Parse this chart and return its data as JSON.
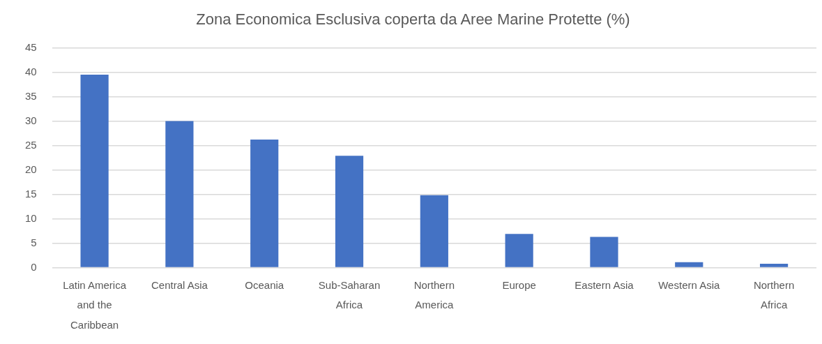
{
  "chart_data": {
    "type": "bar",
    "title": "Zona Economica Esclusiva coperta da Aree Marine Protette (%)",
    "categories": [
      "Latin America and the Caribbean",
      "Central Asia",
      "Oceania",
      "Sub-Saharan Africa",
      "Northern America",
      "Europe",
      "Eastern Asia",
      "Western Asia",
      "Northern Africa"
    ],
    "values": [
      39.5,
      30.0,
      26.2,
      22.9,
      14.8,
      6.9,
      6.3,
      1.1,
      0.8
    ],
    "color": "#4472c4",
    "ylim": [
      0,
      45
    ],
    "yticks": [
      0,
      5,
      10,
      15,
      20,
      25,
      30,
      35,
      40,
      45
    ],
    "grid": "y"
  }
}
